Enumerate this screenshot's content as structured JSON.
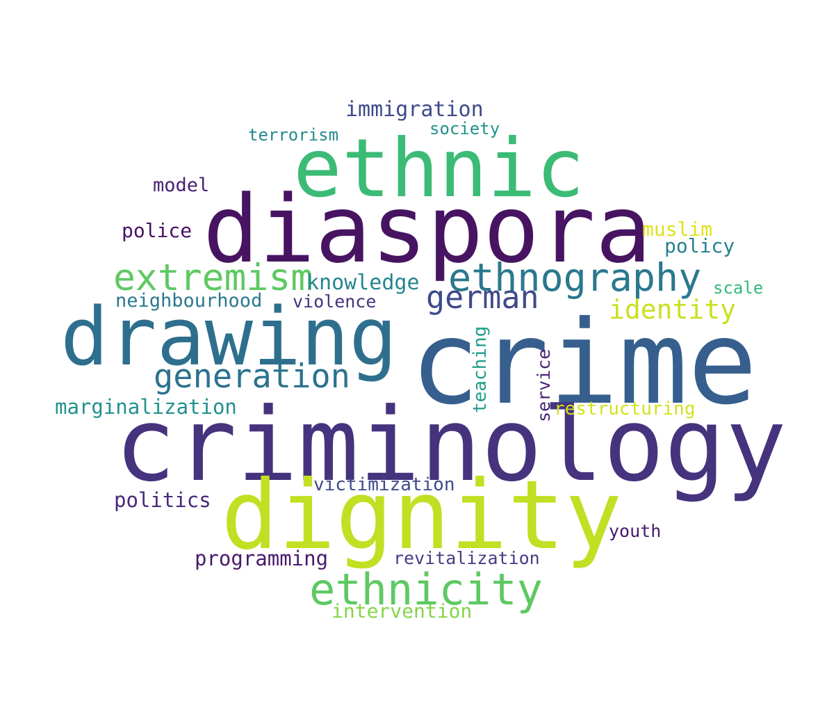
{
  "words": [
    {
      "text": "crime",
      "color": "#365f8e"
    },
    {
      "text": "criminology",
      "color": "#46337e"
    },
    {
      "text": "diaspora",
      "color": "#471461"
    },
    {
      "text": "dignity",
      "color": "#c2df23"
    },
    {
      "text": "ethnic",
      "color": "#3bbb75"
    },
    {
      "text": "drawing",
      "color": "#2e6f8e"
    },
    {
      "text": "ethnicity",
      "color": "#5ec962"
    },
    {
      "text": "ethnography",
      "color": "#2a788e"
    },
    {
      "text": "extremism",
      "color": "#5ec962"
    },
    {
      "text": "german",
      "color": "#3e4a89"
    },
    {
      "text": "generation",
      "color": "#2c728e"
    },
    {
      "text": "identity",
      "color": "#c8e020"
    },
    {
      "text": "immigration",
      "color": "#3e4989"
    },
    {
      "text": "knowledge",
      "color": "#25858e"
    },
    {
      "text": "neighbourhood",
      "color": "#2a788e"
    },
    {
      "text": "violence",
      "color": "#46327e"
    },
    {
      "text": "marginalization",
      "color": "#21918c"
    },
    {
      "text": "restructuring",
      "color": "#d2e21b"
    },
    {
      "text": "victimization",
      "color": "#3e4989"
    },
    {
      "text": "politics",
      "color": "#482878"
    },
    {
      "text": "programming",
      "color": "#481a6c"
    },
    {
      "text": "revitalization",
      "color": "#433e85"
    },
    {
      "text": "intervention",
      "color": "#84d44b"
    },
    {
      "text": "youth",
      "color": "#48186a"
    },
    {
      "text": "teaching",
      "color": "#1f9e89"
    },
    {
      "text": "service",
      "color": "#482475"
    },
    {
      "text": "muslim",
      "color": "#dfe318"
    },
    {
      "text": "policy",
      "color": "#26828e"
    },
    {
      "text": "scale",
      "color": "#35b779"
    },
    {
      "text": "police",
      "color": "#471164"
    },
    {
      "text": "model",
      "color": "#482173"
    },
    {
      "text": "terrorism",
      "color": "#23898e"
    },
    {
      "text": "society",
      "color": "#20928c"
    }
  ]
}
